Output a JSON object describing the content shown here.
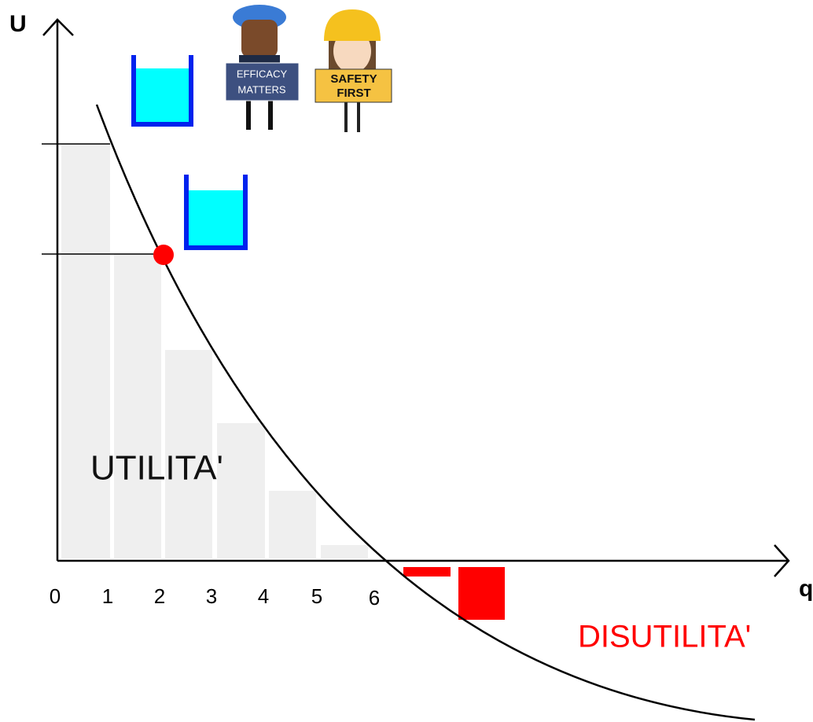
{
  "axes": {
    "y_label": "U",
    "x_label": "q",
    "x_ticks": [
      "0",
      "1",
      "2",
      "3",
      "4",
      "5",
      "6"
    ]
  },
  "labels": {
    "utility": "UTILITA'",
    "disutility": "DISUTILITA'"
  },
  "figures": {
    "efficacy_sign": [
      "EFFICACY",
      "MATTERS"
    ],
    "safety_sign": [
      "SAFETY",
      "FIRST"
    ]
  }
}
